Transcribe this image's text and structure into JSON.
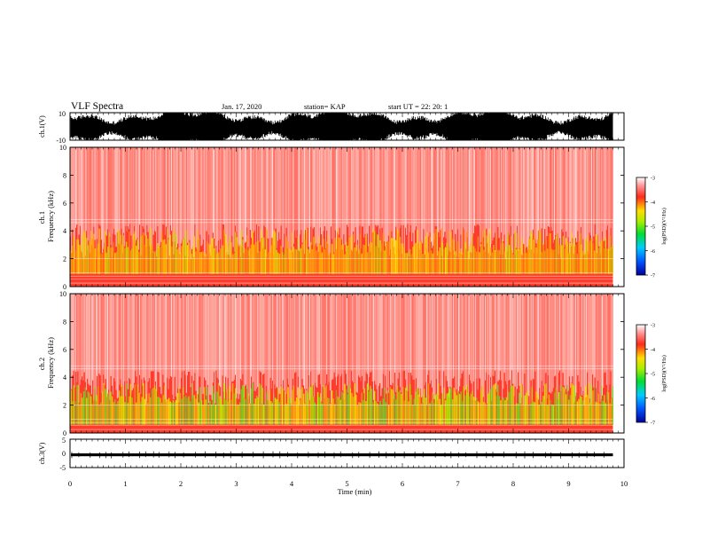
{
  "header": {
    "title": "VLF Spectra",
    "date": "Jan. 17, 2020",
    "station": "station= KAP",
    "start_ut": "start  UT =   22: 20: 1"
  },
  "chart_data": [
    {
      "type": "line",
      "name": "ch1_waveform",
      "ylabel": "ch.1(V)",
      "ylim": [
        -10,
        10
      ],
      "yticks": [
        "10",
        "-10"
      ],
      "xlim": [
        0,
        10
      ],
      "data_extent_min": 9.8,
      "trace_color": "#000000"
    },
    {
      "type": "heatmap",
      "name": "ch1_spectrogram",
      "ylabel": "ch.1\nFrequency  (kHz)",
      "ylim": [
        0,
        10
      ],
      "yticks": [
        "0",
        "2",
        "4",
        "6",
        "8",
        "10"
      ],
      "xlim": [
        0,
        10
      ],
      "data_extent_min": 9.8,
      "colorbar": {
        "label": "log(PSD)(V²/Hz)",
        "range": [
          -7,
          -3
        ],
        "ticks": [
          "-3",
          "-4",
          "-5",
          "-6",
          "-7"
        ],
        "colormap": [
          "#000099",
          "#0055ff",
          "#00ccff",
          "#00dd33",
          "#aaee00",
          "#ffdd00",
          "#ff2a1a",
          "#ffffff"
        ]
      },
      "approx_bands": [
        {
          "freq_khz": [
            0.0,
            1.0
          ],
          "level": "-3.9"
        },
        {
          "freq_khz": [
            1.0,
            3.0
          ],
          "level": "-4.5"
        },
        {
          "freq_khz": [
            3.0,
            5.0
          ],
          "level": "-3.8"
        },
        {
          "freq_khz": [
            5.0,
            10.0
          ],
          "level": "-3.3"
        }
      ]
    },
    {
      "type": "heatmap",
      "name": "ch2_spectrogram",
      "ylabel": "ch.2\nFrequency  (kHz)",
      "ylim": [
        0,
        10
      ],
      "yticks": [
        "0",
        "2",
        "4",
        "6",
        "8",
        "10"
      ],
      "xlim": [
        0,
        10
      ],
      "data_extent_min": 9.8,
      "colorbar": {
        "label": "log(PSD)(V²/Hz)",
        "range": [
          -7,
          -3
        ],
        "ticks": [
          "-3",
          "-4",
          "-5",
          "-6",
          "-7"
        ],
        "colormap": [
          "#000099",
          "#0055ff",
          "#00ccff",
          "#00dd33",
          "#aaee00",
          "#ffdd00",
          "#ff2a1a",
          "#ffffff"
        ]
      },
      "approx_bands": [
        {
          "freq_khz": [
            0.0,
            0.6
          ],
          "level": "-4.0"
        },
        {
          "freq_khz": [
            0.6,
            2.2
          ],
          "level": "-4.8"
        },
        {
          "freq_khz": [
            2.2,
            4.0
          ],
          "level": "-4.2"
        },
        {
          "freq_khz": [
            4.0,
            10.0
          ],
          "level": "-3.3"
        }
      ]
    },
    {
      "type": "line",
      "name": "ch3_waveform",
      "ylabel": "ch.3(V)",
      "ylim": [
        -5,
        5
      ],
      "yticks": [
        "5",
        "0",
        "-5"
      ],
      "xlim": [
        0,
        10
      ],
      "data_extent_min": 9.8,
      "trace_level_v": [
        -1,
        0
      ],
      "trace_color": "#000000"
    }
  ],
  "x_axis": {
    "label": "Time  (min)",
    "ticks": [
      "0",
      "1",
      "2",
      "3",
      "4",
      "5",
      "6",
      "7",
      "8",
      "9",
      "10"
    ]
  }
}
